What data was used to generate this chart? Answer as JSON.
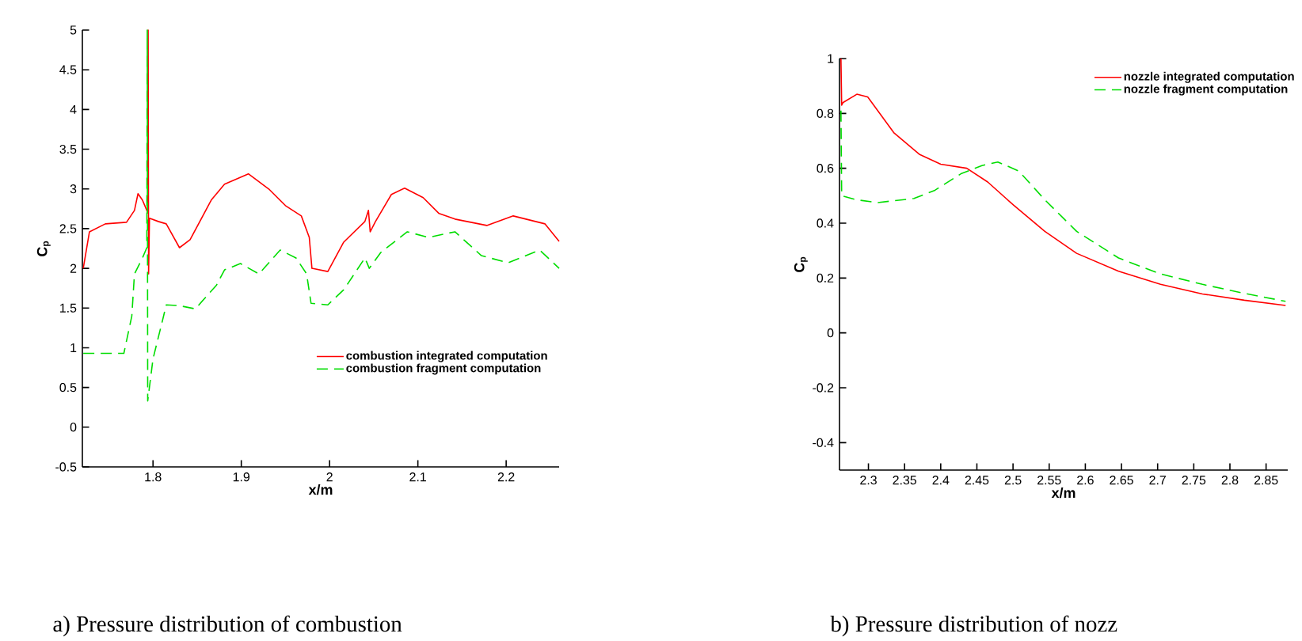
{
  "chart_data": [
    {
      "type": "line",
      "xlabel": "x/m",
      "ylabel": "C$_{p}$",
      "xlim": [
        1.72,
        2.26
      ],
      "ylim": [
        -0.5,
        5
      ],
      "xticks": [
        1.8,
        1.9,
        2,
        2.1,
        2.2
      ],
      "yticks": [
        -0.5,
        0,
        0.5,
        1,
        1.5,
        2,
        2.5,
        3,
        3.5,
        4,
        4.5,
        5
      ],
      "legend": "bottom right",
      "grid": false,
      "annotations": [
        "a) Pressure distribution of combustion"
      ],
      "series": [
        {
          "name": "combustion integrated computation",
          "color": "#ff0000",
          "line_style": "solid",
          "x": [
            1.721,
            1.728,
            1.746,
            1.77,
            1.779,
            1.783,
            1.788,
            1.793,
            1.794,
            1.7945,
            1.795,
            1.796,
            1.806,
            1.815,
            1.83,
            1.842,
            1.866,
            1.881,
            1.908,
            1.932,
            1.95,
            1.968,
            1.977,
            1.98,
            1.998,
            2.016,
            2.04,
            2.044,
            2.046,
            2.052,
            2.07,
            2.085,
            2.106,
            2.124,
            2.142,
            2.178,
            2.208,
            2.244,
            2.26
          ],
          "values": [
            2.0,
            2.46,
            2.56,
            2.58,
            2.73,
            2.94,
            2.86,
            2.73,
            2.7,
            5.0,
            1.93,
            2.63,
            2.59,
            2.56,
            2.26,
            2.36,
            2.86,
            3.06,
            3.19,
            2.99,
            2.79,
            2.66,
            2.39,
            2.0,
            1.96,
            2.33,
            2.59,
            2.73,
            2.46,
            2.59,
            2.93,
            3.01,
            2.89,
            2.69,
            2.62,
            2.54,
            2.66,
            2.56,
            2.34
          ]
        },
        {
          "name": "combustion fragment computation",
          "color": "#00dd00",
          "line_style": "dashed",
          "x": [
            1.721,
            1.767,
            1.776,
            1.779,
            1.788,
            1.793,
            1.7935,
            1.794,
            1.8,
            1.806,
            1.812,
            1.815,
            1.83,
            1.848,
            1.872,
            1.881,
            1.899,
            1.92,
            1.944,
            1.962,
            1.974,
            1.979,
            1.998,
            2.016,
            2.04,
            2.045,
            2.058,
            2.088,
            2.112,
            2.142,
            2.172,
            2.202,
            2.238,
            2.26
          ],
          "values": [
            0.93,
            0.93,
            1.4,
            1.93,
            2.13,
            2.26,
            5.0,
            0.33,
            0.86,
            1.13,
            1.4,
            1.54,
            1.53,
            1.49,
            1.79,
            1.98,
            2.06,
            1.93,
            2.23,
            2.13,
            1.93,
            1.56,
            1.54,
            1.73,
            2.13,
            2.0,
            2.2,
            2.46,
            2.39,
            2.46,
            2.16,
            2.07,
            2.23,
            2.0
          ]
        }
      ]
    },
    {
      "type": "line",
      "xlabel": "x/m",
      "ylabel": "C$_{p}$",
      "xlim": [
        2.26,
        2.88
      ],
      "ylim": [
        -0.5,
        1
      ],
      "xticks": [
        2.3,
        2.35,
        2.4,
        2.45,
        2.5,
        2.55,
        2.6,
        2.65,
        2.7,
        2.75,
        2.8,
        2.85
      ],
      "yticks": [
        -0.4,
        -0.2,
        0,
        0.2,
        0.4,
        0.6,
        0.8,
        1
      ],
      "legend": "top right",
      "grid": false,
      "annotations": [
        "b) Pressure distribution of nozz"
      ],
      "series": [
        {
          "name": "nozzle integrated computation",
          "color": "#ff0000",
          "line_style": "solid",
          "x": [
            2.262,
            2.263,
            2.265,
            2.284,
            2.299,
            2.335,
            2.371,
            2.4,
            2.436,
            2.465,
            2.501,
            2.544,
            2.588,
            2.646,
            2.704,
            2.762,
            2.82,
            2.877
          ],
          "values": [
            1.0,
            0.83,
            0.84,
            0.87,
            0.86,
            0.73,
            0.65,
            0.615,
            0.6,
            0.55,
            0.465,
            0.37,
            0.29,
            0.225,
            0.177,
            0.142,
            0.119,
            0.1
          ]
        },
        {
          "name": "nozzle fragment computation",
          "color": "#00dd00",
          "line_style": "dashed",
          "x": [
            2.262,
            2.263,
            2.284,
            2.313,
            2.363,
            2.392,
            2.428,
            2.457,
            2.479,
            2.508,
            2.544,
            2.588,
            2.646,
            2.704,
            2.762,
            2.82,
            2.877
          ],
          "values": [
            0.81,
            0.5,
            0.485,
            0.475,
            0.49,
            0.52,
            0.58,
            0.61,
            0.623,
            0.59,
            0.485,
            0.37,
            0.273,
            0.215,
            0.177,
            0.144,
            0.115
          ]
        }
      ]
    }
  ]
}
